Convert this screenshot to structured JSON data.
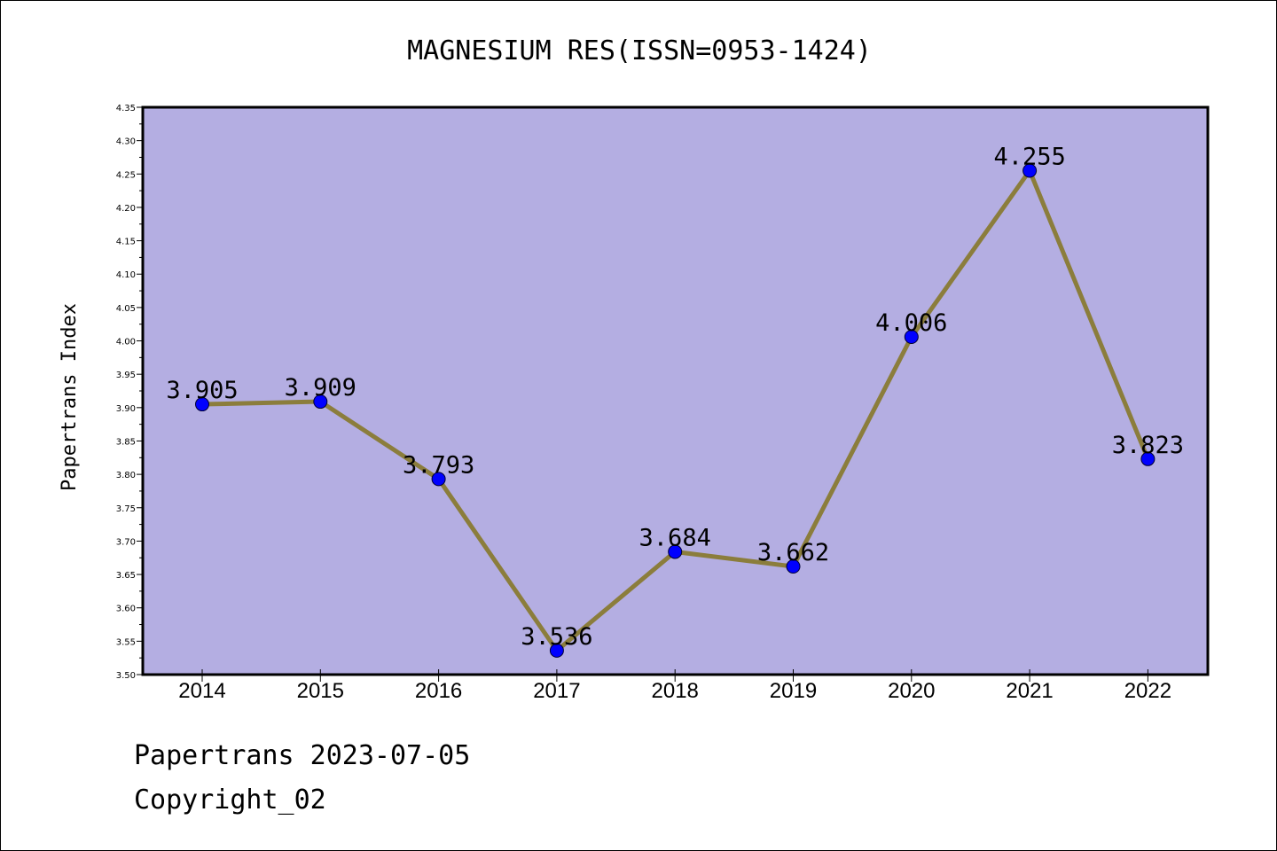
{
  "chart_data": {
    "type": "line",
    "title": "MAGNESIUM RES(ISSN=0953-1424)",
    "xlabel": "",
    "ylabel": "Papertrans Index",
    "categories": [
      "2014",
      "2015",
      "2016",
      "2017",
      "2018",
      "2019",
      "2020",
      "2021",
      "2022"
    ],
    "series": [
      {
        "values": [
          3.905,
          3.909,
          3.793,
          3.536,
          3.684,
          3.662,
          4.006,
          4.255,
          3.823
        ],
        "labels": [
          "3.905",
          "3.909",
          "3.793",
          "3.536",
          "3.684",
          "3.662",
          "4.006",
          "4.255",
          "3.823"
        ]
      }
    ],
    "ylim": [
      3.5,
      4.35
    ],
    "yticks": [
      "3.50",
      "3.55",
      "3.60",
      "3.65",
      "3.70",
      "3.75",
      "3.80",
      "3.85",
      "3.90",
      "3.95",
      "4.00",
      "4.05",
      "4.10",
      "4.15",
      "4.20",
      "4.25",
      "4.30",
      "4.35"
    ],
    "grid": false,
    "legend": "none",
    "colors": {
      "plot_background": "#b4aee2",
      "line": "#8b7d3c",
      "marker": "#0000ff"
    }
  },
  "footer": {
    "line1": "Papertrans 2023-07-05",
    "line2": "Copyright_02"
  }
}
